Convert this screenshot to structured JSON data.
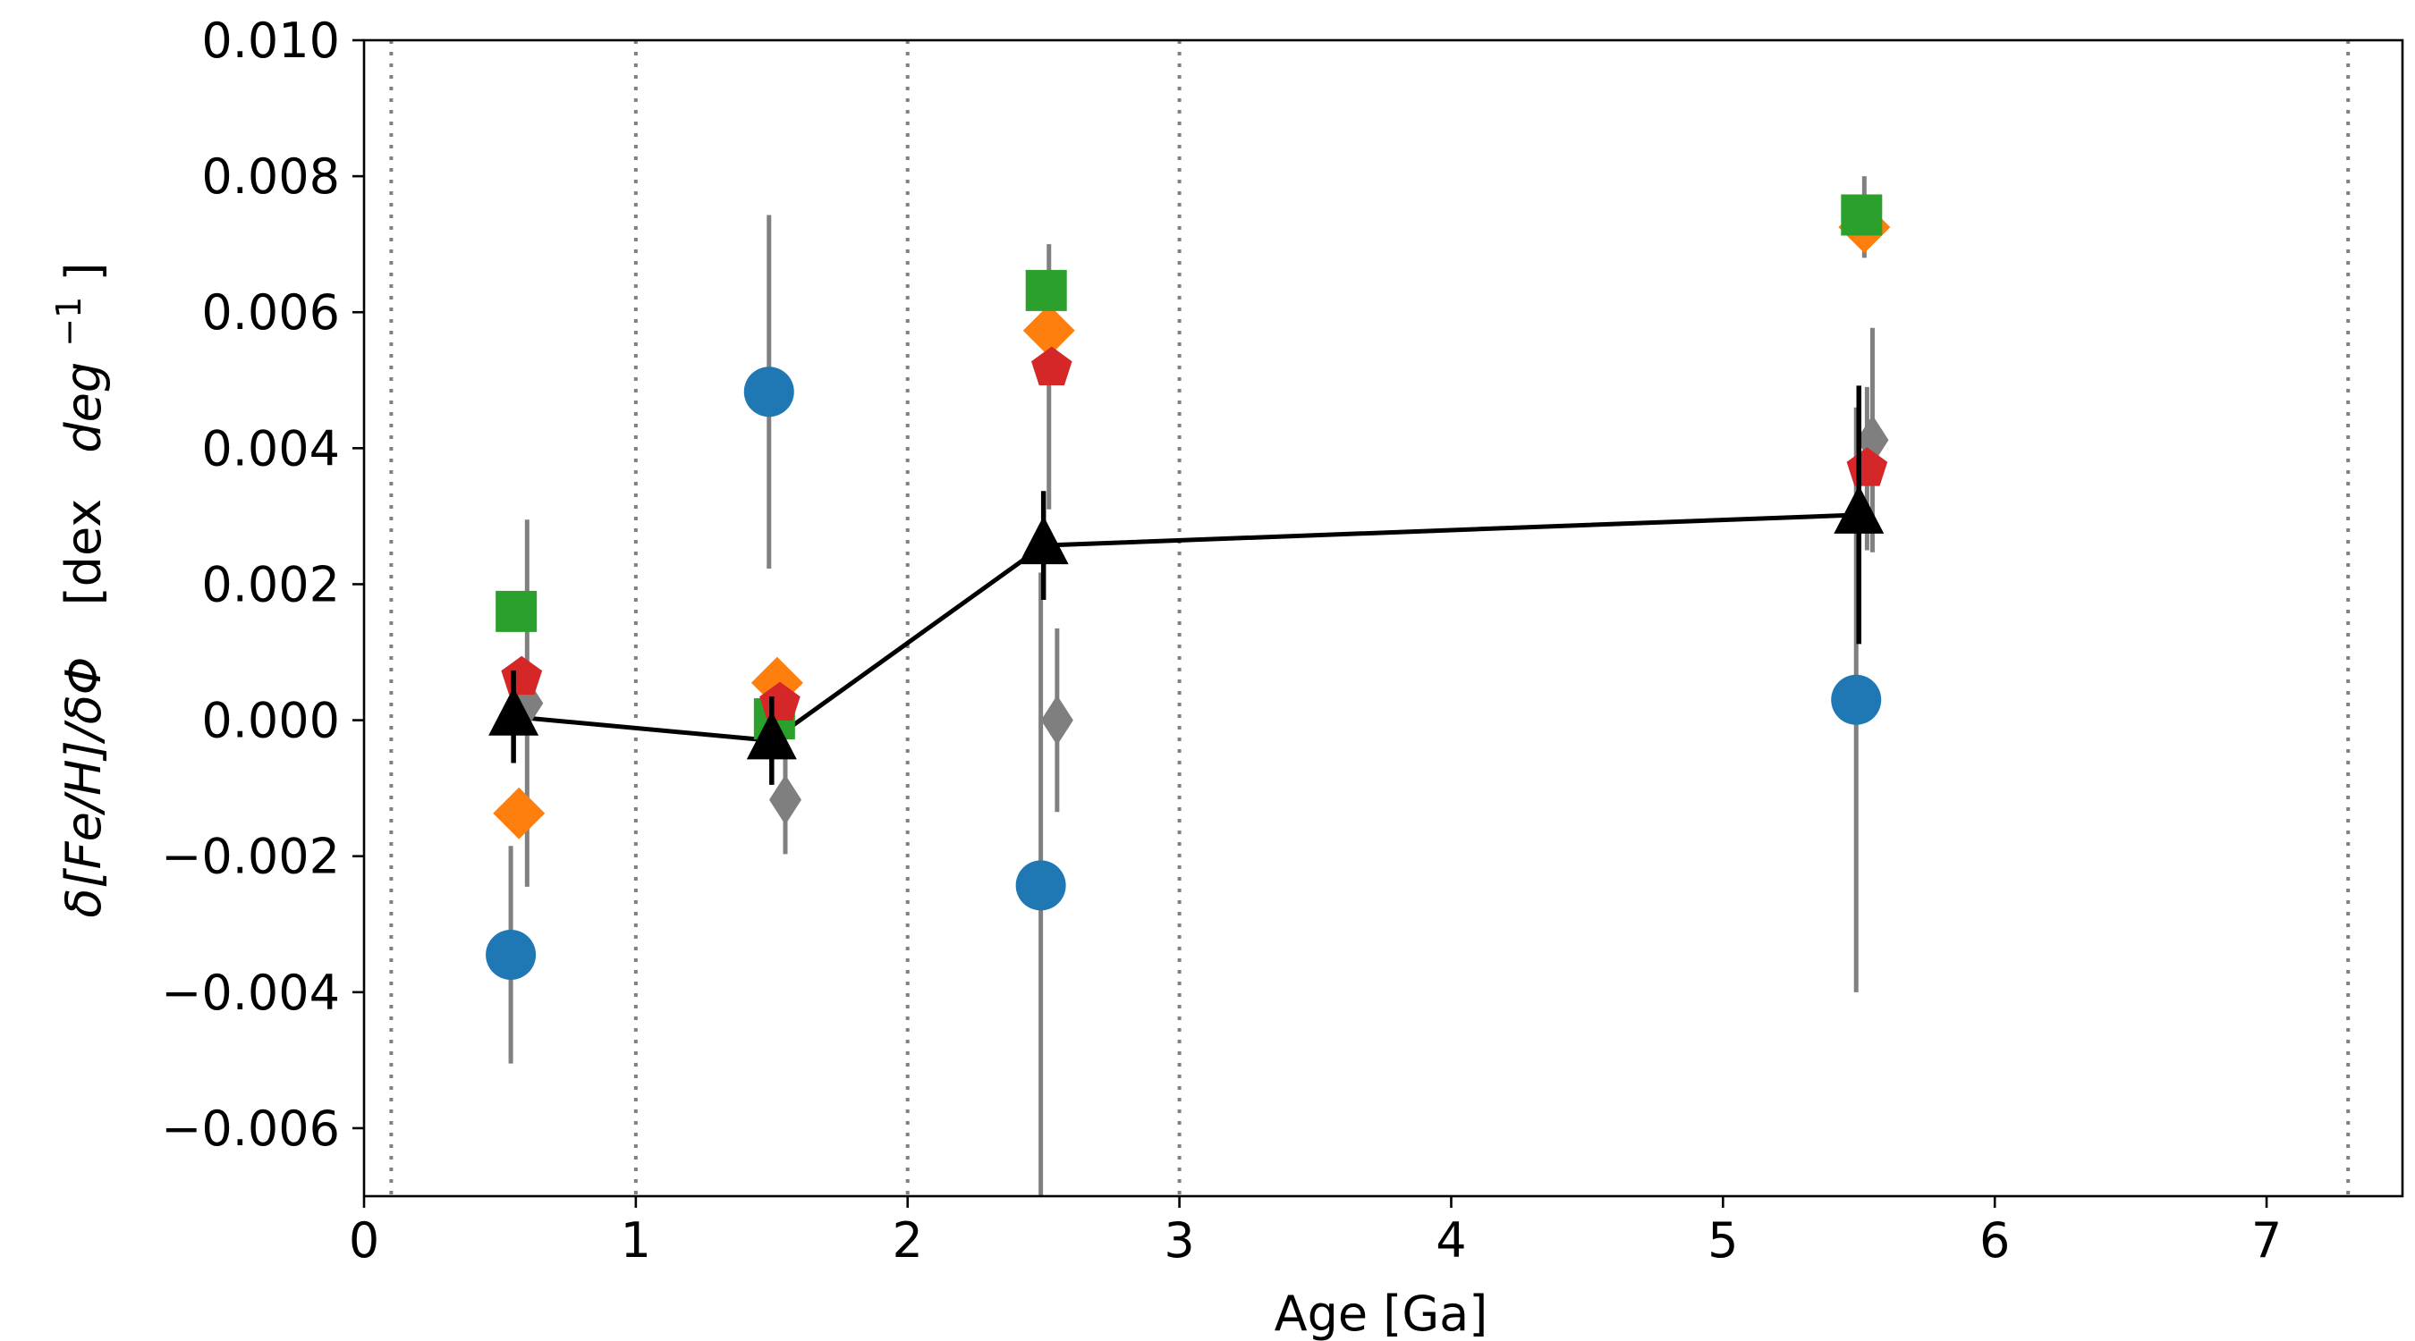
{
  "chart_data": {
    "type": "scatter",
    "xlabel": "Age [Ga]",
    "ylabel": {
      "prefix": "δ[Fe/H]/δΦ",
      "unit_dex": "[dex",
      "unit_deg": "deg",
      "unit_exp": "−1",
      "unit_close": "]"
    },
    "xlim": [
      0,
      7.5
    ],
    "ylim": [
      -0.007,
      0.01
    ],
    "xticks": [
      0,
      1,
      2,
      3,
      4,
      5,
      6,
      7
    ],
    "xtick_labels": [
      "0",
      "1",
      "2",
      "3",
      "4",
      "5",
      "6",
      "7"
    ],
    "yticks": [
      -0.006,
      -0.004,
      -0.002,
      0.0,
      0.002,
      0.004,
      0.006,
      0.008,
      0.01
    ],
    "ytick_labels": [
      "−0.006",
      "−0.004",
      "−0.002",
      "0.000",
      "0.002",
      "0.004",
      "0.006",
      "0.008",
      "0.010"
    ],
    "vertical_dotted_lines": [
      0.1,
      1,
      2,
      3,
      7.3
    ],
    "series": [
      {
        "name": "blue-circle",
        "marker": "circle",
        "color": "#1f77b4",
        "points": [
          {
            "x": 0.54,
            "y": -0.00345,
            "err": 0.0016
          },
          {
            "x": 1.49,
            "y": 0.00483,
            "err": 0.0026
          },
          {
            "x": 2.49,
            "y": -0.00243,
            "err": 0.0046
          },
          {
            "x": 5.49,
            "y": 0.0003,
            "err": 0.0043
          }
        ]
      },
      {
        "name": "orange-diamond",
        "marker": "diamond",
        "color": "#ff7f0e",
        "points": [
          {
            "x": 0.57,
            "y": -0.00137,
            "err": 0.0
          },
          {
            "x": 1.52,
            "y": 0.00055,
            "err": 0.0
          },
          {
            "x": 2.52,
            "y": 0.00573,
            "err": 0.0
          },
          {
            "x": 5.52,
            "y": 0.00725,
            "err": 0.0
          }
        ]
      },
      {
        "name": "green-square",
        "marker": "square",
        "color": "#2ca02c",
        "points": [
          {
            "x": 0.56,
            "y": 0.0016,
            "err": 0.0
          },
          {
            "x": 1.51,
            "y": 2e-05,
            "err": 0.0
          },
          {
            "x": 2.51,
            "y": 0.00632,
            "err": 0.0
          },
          {
            "x": 5.51,
            "y": 0.00743,
            "err": 0.0
          }
        ]
      },
      {
        "name": "red-pentagon",
        "marker": "pentagon",
        "color": "#d62728",
        "points": [
          {
            "x": 0.58,
            "y": 0.00063,
            "err": 0.0
          },
          {
            "x": 1.53,
            "y": 0.00025,
            "err": 0.0
          },
          {
            "x": 2.53,
            "y": 0.00518,
            "err": 0.0
          },
          {
            "x": 5.53,
            "y": 0.0037,
            "err": 0.0
          }
        ]
      },
      {
        "name": "gray-diamond",
        "marker": "thin-diamond",
        "color": "#7f7f7f",
        "points": [
          {
            "x": 0.6,
            "y": 0.00025,
            "err": 0.0027
          },
          {
            "x": 1.55,
            "y": -0.00117,
            "err": 0.0008
          },
          {
            "x": 2.55,
            "y": 0.0,
            "err": 0.00135
          },
          {
            "x": 5.55,
            "y": 0.00412,
            "err": 0.00165
          }
        ]
      },
      {
        "name": "black-triangle",
        "marker": "triangle",
        "color": "#000000",
        "line": true,
        "points": [
          {
            "x": 0.55,
            "y": 5e-05,
            "err": 0.00068
          },
          {
            "x": 1.5,
            "y": -0.0003,
            "err": 0.00065
          },
          {
            "x": 2.5,
            "y": 0.00257,
            "err": 0.0008
          },
          {
            "x": 5.5,
            "y": 0.00302,
            "err": 0.0019
          }
        ]
      }
    ],
    "extra_error_bars": [
      {
        "series": "gray-diamond",
        "x": 2.52,
        "ylow": 0.0031,
        "yhigh": 0.007
      },
      {
        "series": "gray-diamond",
        "x": 5.52,
        "ylow": 0.0068,
        "yhigh": 0.008
      },
      {
        "series": "gray-diamond",
        "x": 5.53,
        "ylow": 0.0025,
        "yhigh": 0.0049
      }
    ]
  }
}
